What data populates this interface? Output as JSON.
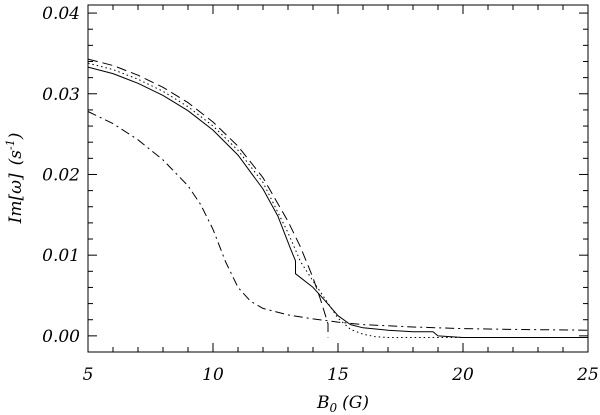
{
  "chart_data": {
    "type": "line",
    "xlabel": "B",
    "xlabel_subscript": "0",
    "xlabel_unit": "(G)",
    "ylabel": "Im[ω]",
    "ylabel_unit": "(s",
    "ylabel_exponent": "-1",
    "ylabel_unit_close": ")",
    "xlim": [
      5,
      25
    ],
    "ylim": [
      -0.002,
      0.041
    ],
    "xticks": [
      5,
      10,
      15,
      20,
      25
    ],
    "xtick_labels": [
      "5",
      "10",
      "15",
      "20",
      "25"
    ],
    "yticks": [
      0.0,
      0.01,
      0.02,
      0.03,
      0.04
    ],
    "ytick_labels": [
      "0.00",
      "0.01",
      "0.02",
      "0.03",
      "0.04"
    ],
    "grid": false,
    "series": [
      {
        "style": "solid",
        "x": [
          5.0,
          6.0,
          7.0,
          8.0,
          9.0,
          10.0,
          11.0,
          12.0,
          12.6,
          13.1,
          13.3,
          13.3,
          14.0,
          14.5,
          15.0,
          15.5,
          16.0,
          17.0,
          18.0,
          18.8,
          19.0,
          20.0,
          22.0,
          25.0
        ],
        "y": [
          0.0333,
          0.0325,
          0.0313,
          0.0298,
          0.0279,
          0.0255,
          0.0224,
          0.0182,
          0.0148,
          0.0108,
          0.0093,
          0.0077,
          0.006,
          0.0043,
          0.0025,
          0.0014,
          0.001,
          0.0007,
          0.0005,
          0.0005,
          0.0,
          -0.0002,
          -0.0002,
          -0.0002
        ]
      },
      {
        "style": "dashed",
        "x": [
          5.0,
          6.0,
          7.0,
          8.0,
          9.0,
          10.0,
          11.0,
          12.0,
          13.0,
          13.5,
          14.0,
          14.3,
          14.5,
          14.6,
          14.6
        ],
        "y": [
          0.0343,
          0.0335,
          0.0323,
          0.0308,
          0.0289,
          0.0265,
          0.0235,
          0.0196,
          0.0142,
          0.011,
          0.0072,
          0.0045,
          0.0025,
          0.0015,
          -0.0002
        ]
      },
      {
        "style": "dotted",
        "x": [
          5.0,
          6.0,
          7.0,
          8.0,
          9.0,
          10.0,
          11.0,
          12.0,
          13.0,
          13.5,
          14.0,
          14.5,
          15.0,
          15.5,
          16.0,
          16.5,
          17.0,
          18.0,
          19.0,
          25.0
        ],
        "y": [
          0.0338,
          0.033,
          0.0318,
          0.0303,
          0.0284,
          0.026,
          0.023,
          0.019,
          0.0128,
          0.0092,
          0.0068,
          0.0045,
          0.0022,
          0.0008,
          0.0002,
          -0.0001,
          -0.0002,
          -0.0002,
          -0.0002,
          -0.0002
        ]
      },
      {
        "style": "dashdot",
        "x": [
          5.0,
          6.0,
          7.0,
          8.0,
          9.0,
          9.5,
          10.0,
          10.5,
          11.0,
          11.5,
          12.0,
          13.0,
          14.0,
          15.0,
          16.0,
          18.0,
          20.0,
          22.0,
          25.0
        ],
        "y": [
          0.0278,
          0.0263,
          0.0243,
          0.0218,
          0.0186,
          0.0163,
          0.0132,
          0.0092,
          0.006,
          0.0043,
          0.0034,
          0.0026,
          0.0021,
          0.0017,
          0.0014,
          0.0011,
          0.0009,
          0.0008,
          0.0007
        ]
      }
    ]
  }
}
